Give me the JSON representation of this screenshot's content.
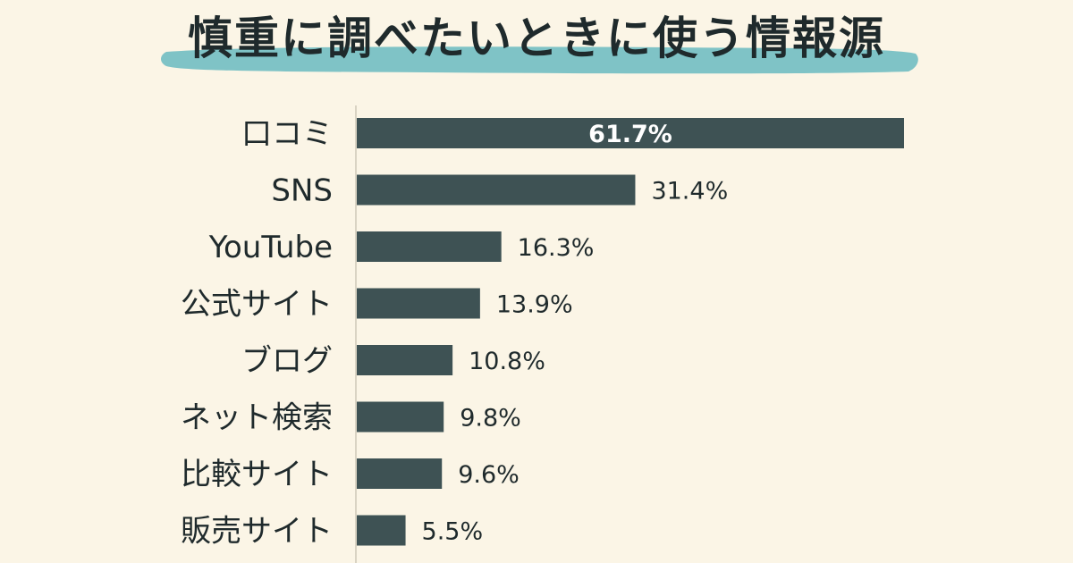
{
  "title": "慎重に調べたいときに使う情報源",
  "colors": {
    "background": "#fbf5e6",
    "bar": "#3e5254",
    "brush": "#7fc3c6",
    "text": "#1f2a2c",
    "inside_label": "#ffffff",
    "axis": "#d9d3c3"
  },
  "chart_data": {
    "type": "bar",
    "orientation": "horizontal",
    "title": "慎重に調べたいときに使う情報源",
    "categories": [
      "口コミ",
      "SNS",
      "YouTube",
      "公式サイト",
      "ブログ",
      "ネット検索",
      "比較サイト",
      "販売サイト"
    ],
    "values": [
      61.7,
      31.4,
      16.3,
      13.9,
      10.8,
      9.8,
      9.6,
      5.5
    ],
    "value_labels": [
      "61.7%",
      "31.4%",
      "16.3%",
      "13.9%",
      "10.8%",
      "9.8%",
      "9.6%",
      "5.5%"
    ],
    "xlim": [
      0,
      61.7
    ],
    "grid": false,
    "legend": "none"
  }
}
